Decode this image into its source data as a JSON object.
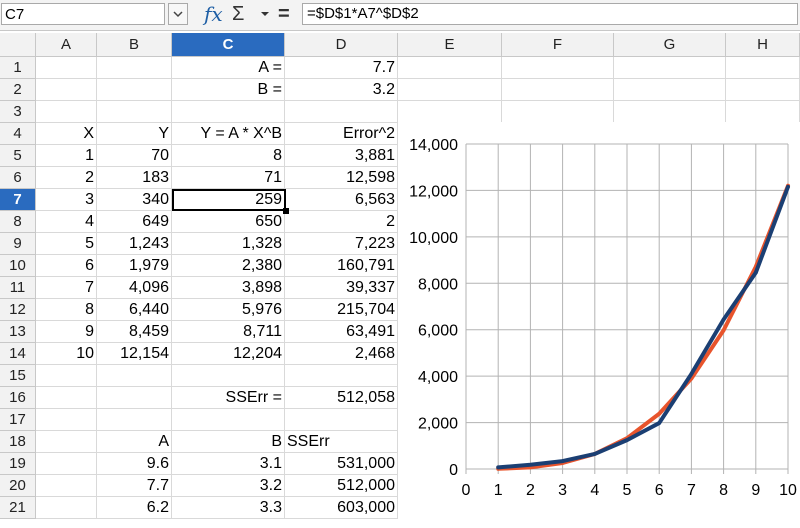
{
  "formula_bar": {
    "name_box": "C7",
    "fx_icon": "fx",
    "sum_icon": "Σ",
    "equals_icon": "=",
    "formula": "=$D$1*A7^$D$2"
  },
  "columns": [
    "A",
    "B",
    "C",
    "D",
    "E",
    "F",
    "G",
    "H"
  ],
  "selected_column": "C",
  "selected_row": 7,
  "rows": [
    {
      "n": 1,
      "cells": {
        "C": "A =",
        "D": "7.7"
      }
    },
    {
      "n": 2,
      "cells": {
        "C": "B =",
        "D": "3.2"
      }
    },
    {
      "n": 3,
      "cells": {}
    },
    {
      "n": 4,
      "cells": {
        "A": "X",
        "B": "Y",
        "C": "Y = A * X^B",
        "D": "Error^2"
      }
    },
    {
      "n": 5,
      "cells": {
        "A": "1",
        "B": "70",
        "C": "8",
        "D": "3,881"
      }
    },
    {
      "n": 6,
      "cells": {
        "A": "2",
        "B": "183",
        "C": "71",
        "D": "12,598"
      }
    },
    {
      "n": 7,
      "cells": {
        "A": "3",
        "B": "340",
        "C": "259",
        "D": "6,563"
      }
    },
    {
      "n": 8,
      "cells": {
        "A": "4",
        "B": "649",
        "C": "650",
        "D": "2"
      }
    },
    {
      "n": 9,
      "cells": {
        "A": "5",
        "B": "1,243",
        "C": "1,328",
        "D": "7,223"
      }
    },
    {
      "n": 10,
      "cells": {
        "A": "6",
        "B": "1,979",
        "C": "2,380",
        "D": "160,791"
      }
    },
    {
      "n": 11,
      "cells": {
        "A": "7",
        "B": "4,096",
        "C": "3,898",
        "D": "39,337"
      }
    },
    {
      "n": 12,
      "cells": {
        "A": "8",
        "B": "6,440",
        "C": "5,976",
        "D": "215,704"
      }
    },
    {
      "n": 13,
      "cells": {
        "A": "9",
        "B": "8,459",
        "C": "8,711",
        "D": "63,491"
      }
    },
    {
      "n": 14,
      "cells": {
        "A": "10",
        "B": "12,154",
        "C": "12,204",
        "D": "2,468"
      }
    },
    {
      "n": 15,
      "cells": {}
    },
    {
      "n": 16,
      "cells": {
        "C": "SSErr =",
        "D": "512,058"
      }
    },
    {
      "n": 17,
      "cells": {}
    },
    {
      "n": 18,
      "cells": {
        "B": "A",
        "C": "B",
        "D": "SSErr"
      }
    },
    {
      "n": 19,
      "cells": {
        "B": "9.6",
        "C": "3.1",
        "D": "531,000"
      }
    },
    {
      "n": 20,
      "cells": {
        "B": "7.7",
        "C": "3.2",
        "D": "512,000"
      }
    },
    {
      "n": 21,
      "cells": {
        "B": "6.2",
        "C": "3.3",
        "D": "603,000"
      }
    }
  ],
  "chart_data": {
    "type": "line",
    "x": [
      1,
      2,
      3,
      4,
      5,
      6,
      7,
      8,
      9,
      10
    ],
    "series": [
      {
        "color": "#e8542c",
        "values": [
          8,
          71,
          259,
          650,
          1328,
          2380,
          3898,
          5976,
          8711,
          12204
        ]
      },
      {
        "color": "#1b3f73",
        "values": [
          70,
          183,
          340,
          649,
          1243,
          1979,
          4096,
          6440,
          8459,
          12154
        ]
      }
    ],
    "xlim": [
      0,
      10
    ],
    "ylim": [
      0,
      14000
    ],
    "x_ticks": [
      "0",
      "1",
      "2",
      "3",
      "4",
      "5",
      "6",
      "7",
      "8",
      "9",
      "10"
    ],
    "y_ticks": [
      "0",
      "2,000",
      "4,000",
      "6,000",
      "8,000",
      "10,000",
      "12,000",
      "14,000"
    ],
    "grid": true,
    "title": "",
    "xlabel": "",
    "ylabel": ""
  }
}
